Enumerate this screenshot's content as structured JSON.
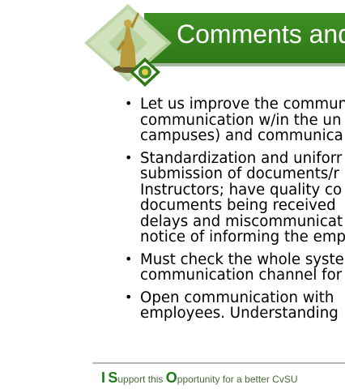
{
  "slide": {
    "title": "Comments and",
    "bullets": [
      {
        "lines": [
          "Let us improve the commun",
          "communication w/in the un",
          "campuses) and communica"
        ]
      },
      {
        "lines": [
          "Standardization and uniforr",
          "submission of documents/r",
          "Instructors; have quality co",
          "documents being received",
          "delays and miscommunicat",
          "notice of informing the emp"
        ]
      },
      {
        "lines": [
          "Must check the whole syste",
          "communication channel for"
        ]
      },
      {
        "lines": [
          "Open communication with",
          "employees. Understanding"
        ]
      }
    ],
    "footer": {
      "letter_1": "I",
      "letter_2": "S",
      "text_2": "upport this ",
      "letter_3": "O",
      "text_3": "pportunity for a better CvSU"
    }
  },
  "colors": {
    "banner": "#2f7a17",
    "footer_accent": "#1f7a18"
  },
  "icons": {
    "logo": "university-seal-with-statue-icon"
  }
}
